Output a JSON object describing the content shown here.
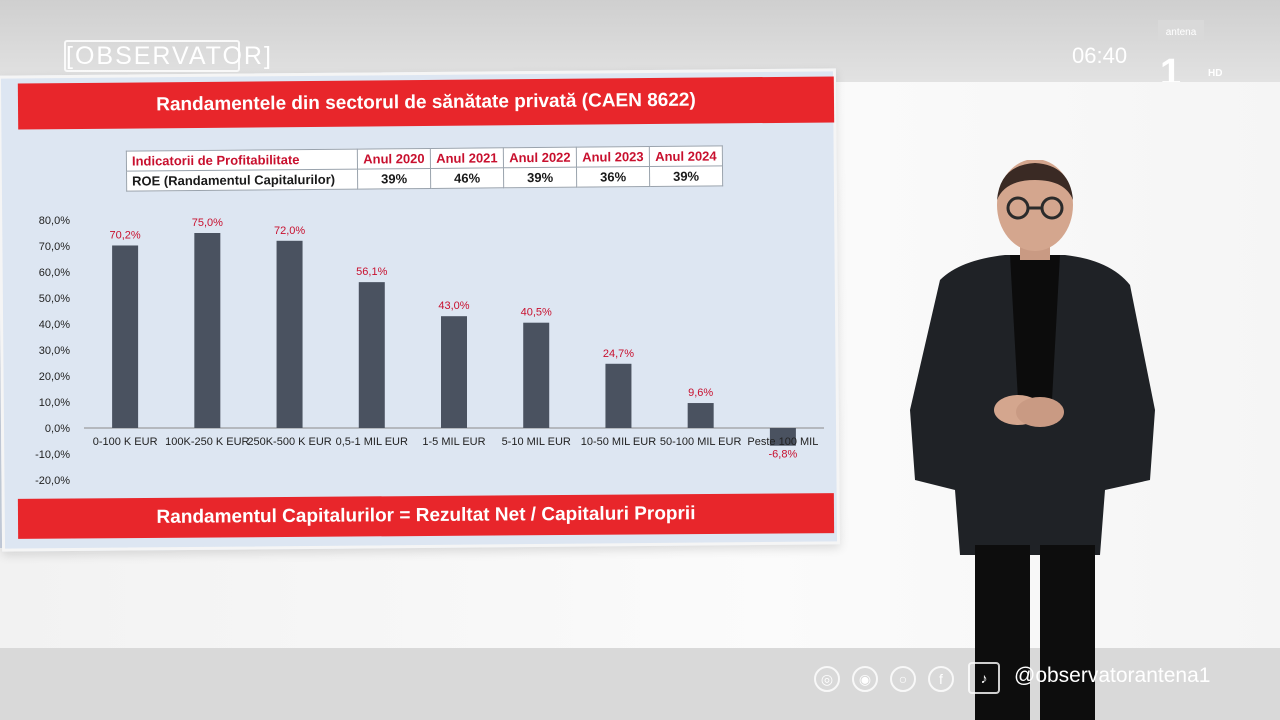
{
  "broadcast": {
    "logo": "[OBSERVATOR]",
    "clock": "06:40",
    "channel": "antena",
    "channel_number": "1",
    "hd_badge": "HD",
    "social_handle": "@observatorantena1",
    "social_icons": [
      "rss-icon",
      "website-icon",
      "instagram-icon",
      "facebook-icon",
      "tiktok-icon"
    ]
  },
  "slide": {
    "title": "Randamentele din sectorul de sănătate privată (CAEN 8622)",
    "formula": "Randamentul Capitalurilor = Rezultat Net / Capitaluri Proprii",
    "table": {
      "header_label": "Indicatorii de Profitabilitate",
      "years": [
        "Anul 2020",
        "Anul 2021",
        "Anul 2022",
        "Anul 2023",
        "Anul 2024"
      ],
      "row_label": "ROE (Randamentul Capitalurilor)",
      "row_values": [
        "39%",
        "46%",
        "39%",
        "36%",
        "39%"
      ]
    }
  },
  "chart_data": {
    "type": "bar",
    "categories": [
      "0-100 K EUR",
      "100K-250 K EUR",
      "250K-500 K EUR",
      "0,5-1 MIL EUR",
      "1-5 MIL EUR",
      "5-10 MIL EUR",
      "10-50 MIL EUR",
      "50-100 MIL EUR",
      "Peste 100 MIL"
    ],
    "values": [
      70.2,
      75.0,
      72.0,
      56.1,
      43.0,
      40.5,
      24.7,
      9.6,
      -6.8
    ],
    "data_labels": [
      "70,2%",
      "75,0%",
      "72,0%",
      "56,1%",
      "43,0%",
      "40,5%",
      "24,7%",
      "9,6%",
      "-6,8%"
    ],
    "ylim": [
      -20,
      80
    ],
    "yticks": [
      80,
      70,
      60,
      50,
      40,
      30,
      20,
      10,
      0,
      -10,
      -20
    ],
    "ytick_labels": [
      "80,0%",
      "70,0%",
      "60,0%",
      "50,0%",
      "40,0%",
      "30,0%",
      "20,0%",
      "10,0%",
      "0,0%",
      "-10,0%",
      "-20,0%"
    ],
    "bar_color": "#4a5260",
    "label_color": "#c8102e"
  }
}
